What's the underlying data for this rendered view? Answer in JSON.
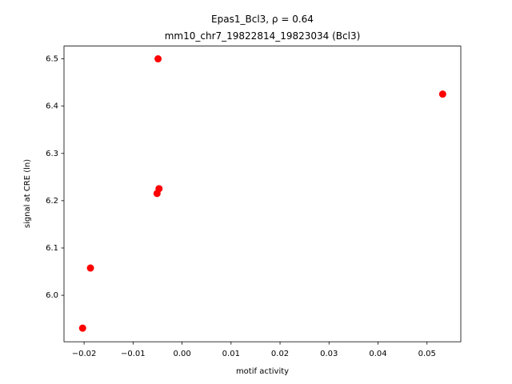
{
  "chart_data": {
    "type": "scatter",
    "title": "Epas1_Bcl3, ρ = 0.64",
    "subtitle": "mm10_chr7_19822814_19823034 (Bcl3)",
    "x_label": "motif activity",
    "y_label": "signal at CRE (ln)",
    "color": "#ff0000",
    "x": [
      -0.0203,
      -0.0187,
      -0.0051,
      -0.0047,
      -0.0049,
      0.0532
    ],
    "values": [
      5.9305,
      6.0576,
      6.2153,
      6.2254,
      6.5,
      6.4254
    ],
    "xlim": [
      -0.0241,
      0.0569
    ],
    "ylim": [
      5.9017,
      6.527
    ],
    "xticks": [
      {
        "value": -0.02,
        "label": "−0.02"
      },
      {
        "value": -0.01,
        "label": "−0.01"
      },
      {
        "value": 0,
        "label": "0.00"
      },
      0.01,
      0.02,
      0.03,
      0.04,
      0.05
    ],
    "yticks": [
      {
        "value": 6,
        "label": "6.0"
      },
      6.1,
      6.2,
      6.3,
      6.4,
      6.5
    ],
    "grid": false
  }
}
